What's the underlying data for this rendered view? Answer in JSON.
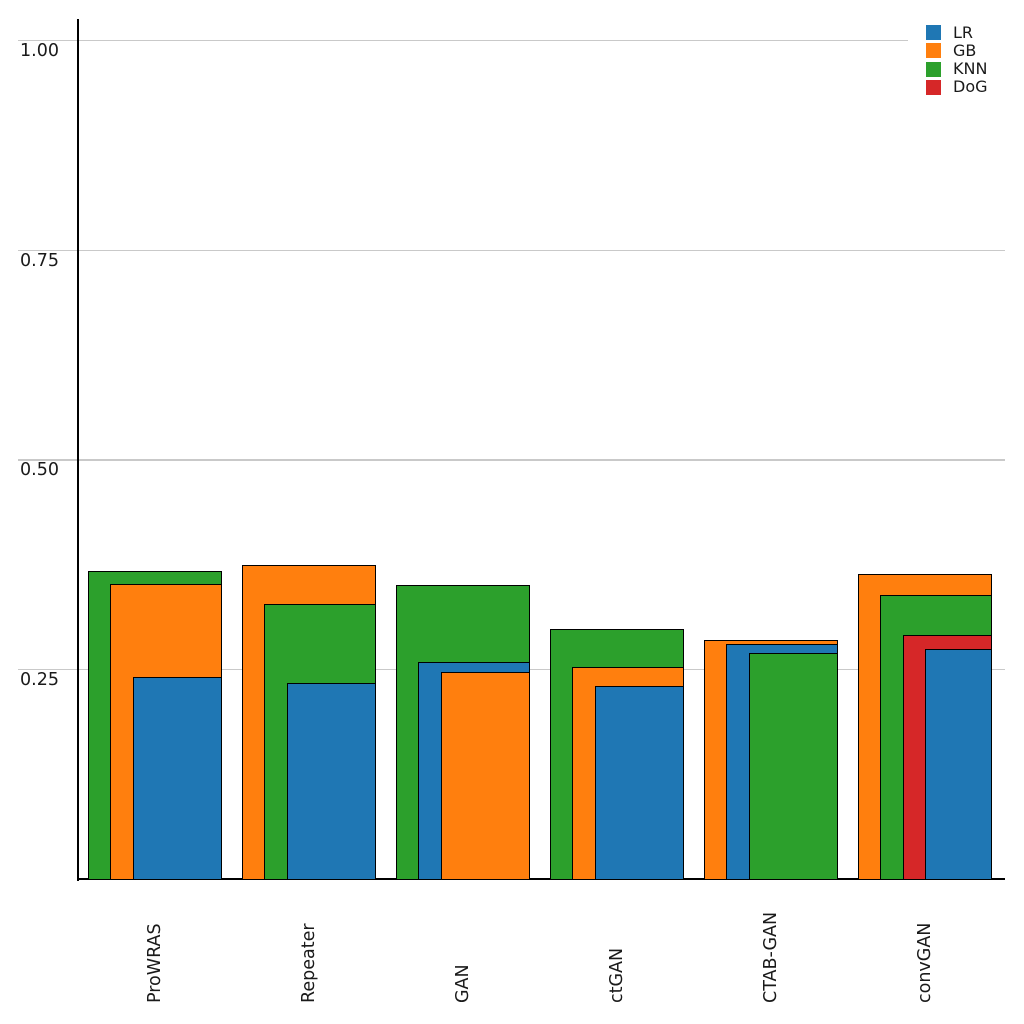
{
  "chart_data": {
    "type": "bar",
    "variant": "nested-overlapping-bars-right-aligned",
    "title": "",
    "xlabel": "",
    "ylabel": "",
    "categories": [
      "ProWRAS",
      "Repeater",
      "GAN",
      "ctGAN",
      "CTAB-GAN",
      "convGAN"
    ],
    "series": [
      {
        "name": "LR",
        "color": "#1f77b4",
        "values": [
          0.24,
          0.233,
          0.258,
          0.23,
          0.28,
          0.274
        ]
      },
      {
        "name": "GB",
        "color": "#ff7f0e",
        "values": [
          0.351,
          0.374,
          0.246,
          0.252,
          0.284,
          0.363
        ]
      },
      {
        "name": "KNN",
        "color": "#2ca02c",
        "values": [
          0.367,
          0.327,
          0.35,
          0.298,
          0.269,
          0.338
        ]
      },
      {
        "name": "DoG",
        "color": "#d62728",
        "values": [
          null,
          null,
          null,
          null,
          null,
          0.29
        ]
      }
    ],
    "yticks": [
      {
        "value": 0.25,
        "label": "0.25"
      },
      {
        "value": 0.5,
        "label": "0.50"
      },
      {
        "value": 0.75,
        "label": "0.75"
      },
      {
        "value": 1.0,
        "label": "1.00"
      }
    ],
    "ylim": [
      0,
      1.03
    ],
    "grid": true,
    "legend_position": "top-right",
    "bar_edge_color": "#000000",
    "gridline_color": "#c9c9c9",
    "axis_color": "#000000",
    "background_color": "#ffffff"
  }
}
